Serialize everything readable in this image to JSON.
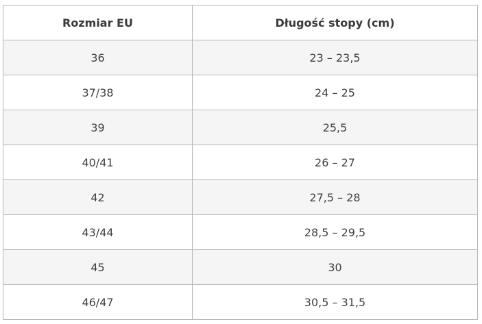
{
  "table": {
    "headers": [
      "Rozmiar EU",
      "Długość stopy (cm)"
    ],
    "rows": [
      [
        "36",
        "23 – 23,5"
      ],
      [
        "37/38",
        "24 – 25"
      ],
      [
        "39",
        "25,5"
      ],
      [
        "40/41",
        "26 – 27"
      ],
      [
        "42",
        "27,5 – 28"
      ],
      [
        "43/44",
        "28,5 – 29,5"
      ],
      [
        "45",
        "30"
      ],
      [
        "46/47",
        "30,5 – 31,5"
      ]
    ]
  }
}
